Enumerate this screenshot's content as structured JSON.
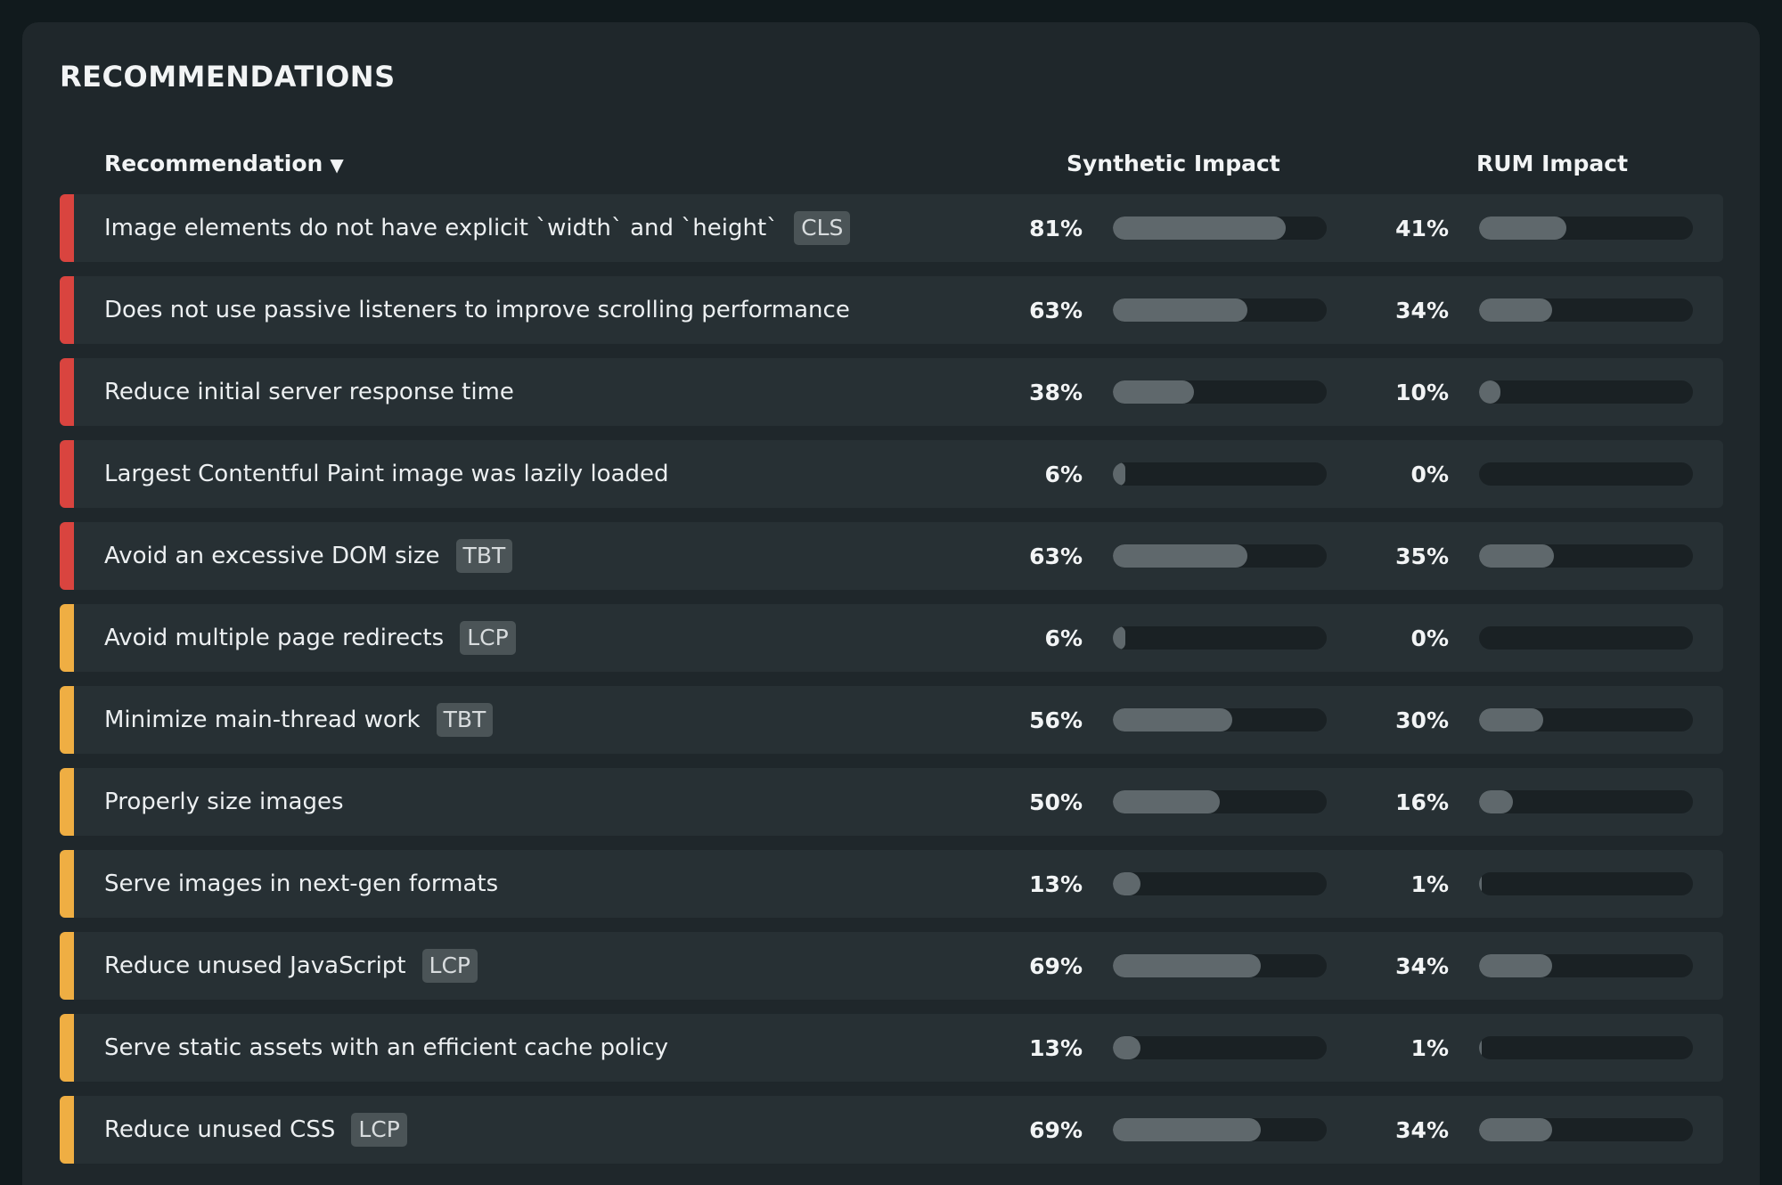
{
  "title": "RECOMMENDATIONS",
  "columns": {
    "recommendation": "Recommendation",
    "sort_arrow": "▼",
    "synthetic": "Synthetic Impact",
    "rum": "RUM Impact"
  },
  "colors": {
    "high": "#d9443f",
    "medium": "#efae43",
    "fill": "#5f686c"
  },
  "rows": [
    {
      "name": "Image elements do not have explicit `width` and `height`",
      "badge": "CLS",
      "severity": "high",
      "synthetic": 81,
      "synthetic_label": "81%",
      "rum": 41,
      "rum_label": "41%"
    },
    {
      "name": "Does not use passive listeners to improve scrolling performance",
      "badge": "",
      "severity": "high",
      "synthetic": 63,
      "synthetic_label": "63%",
      "rum": 34,
      "rum_label": "34%"
    },
    {
      "name": "Reduce initial server response time",
      "badge": "",
      "severity": "high",
      "synthetic": 38,
      "synthetic_label": "38%",
      "rum": 10,
      "rum_label": "10%"
    },
    {
      "name": "Largest Contentful Paint image was lazily loaded",
      "badge": "",
      "severity": "high",
      "synthetic": 6,
      "synthetic_label": "6%",
      "rum": 0,
      "rum_label": "0%"
    },
    {
      "name": "Avoid an excessive DOM size",
      "badge": "TBT",
      "severity": "high",
      "synthetic": 63,
      "synthetic_label": "63%",
      "rum": 35,
      "rum_label": "35%"
    },
    {
      "name": "Avoid multiple page redirects",
      "badge": "LCP",
      "severity": "medium",
      "synthetic": 6,
      "synthetic_label": "6%",
      "rum": 0,
      "rum_label": "0%"
    },
    {
      "name": "Minimize main-thread work",
      "badge": "TBT",
      "severity": "medium",
      "synthetic": 56,
      "synthetic_label": "56%",
      "rum": 30,
      "rum_label": "30%"
    },
    {
      "name": "Properly size images",
      "badge": "",
      "severity": "medium",
      "synthetic": 50,
      "synthetic_label": "50%",
      "rum": 16,
      "rum_label": "16%"
    },
    {
      "name": "Serve images in next-gen formats",
      "badge": "",
      "severity": "medium",
      "synthetic": 13,
      "synthetic_label": "13%",
      "rum": 1,
      "rum_label": "1%"
    },
    {
      "name": "Reduce unused JavaScript",
      "badge": "LCP",
      "severity": "medium",
      "synthetic": 69,
      "synthetic_label": "69%",
      "rum": 34,
      "rum_label": "34%"
    },
    {
      "name": "Serve static assets with an efficient cache policy",
      "badge": "",
      "severity": "medium",
      "synthetic": 13,
      "synthetic_label": "13%",
      "rum": 1,
      "rum_label": "1%"
    },
    {
      "name": "Reduce unused CSS",
      "badge": "LCP",
      "severity": "medium",
      "synthetic": 69,
      "synthetic_label": "69%",
      "rum": 34,
      "rum_label": "34%"
    }
  ]
}
